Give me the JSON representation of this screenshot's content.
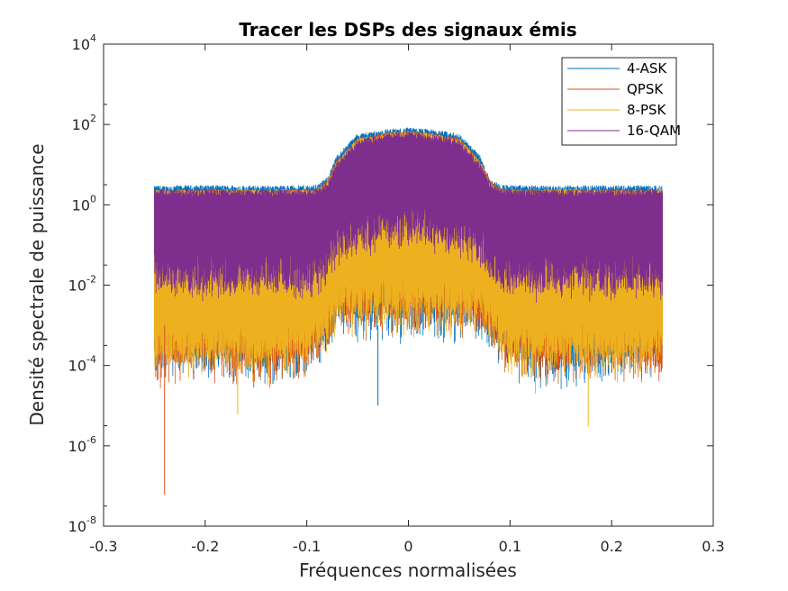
{
  "chart_data": {
    "type": "line",
    "title": "Tracer les DSPs des signaux émis",
    "xlabel": "Fréquences normalisées",
    "ylabel": "Densité spectrale de puissance",
    "xlim": [
      -0.3,
      0.3
    ],
    "ylim": [
      1e-08,
      10000.0
    ],
    "yscale": "log",
    "grid": false,
    "legend_position": "top-right",
    "x_ticks": [
      "-0.3",
      "-0.2",
      "-0.1",
      "0",
      "0.1",
      "0.2",
      "0.3"
    ],
    "y_ticks": [
      {
        "base": "10",
        "exp": "-8"
      },
      {
        "base": "10",
        "exp": "-6"
      },
      {
        "base": "10",
        "exp": "-4"
      },
      {
        "base": "10",
        "exp": "-2"
      },
      {
        "base": "10",
        "exp": "0"
      },
      {
        "base": "10",
        "exp": "2"
      },
      {
        "base": "10",
        "exp": "4"
      }
    ],
    "series": [
      {
        "name": "4-ASK",
        "color": "#0072BD",
        "x": [
          -0.25,
          -0.2,
          -0.15,
          -0.1,
          -0.09,
          -0.08,
          -0.07,
          -0.05,
          -0.02,
          0.0,
          0.02,
          0.05,
          0.07,
          0.08,
          0.09,
          0.1,
          0.15,
          0.2,
          0.25
        ],
        "upper": [
          2.5,
          2.6,
          2.5,
          2.6,
          2.7,
          4,
          15,
          50,
          65,
          70,
          65,
          50,
          15,
          4,
          2.7,
          2.6,
          2.5,
          2.6,
          2.5
        ],
        "lower": [
          0.0001,
          8e-05,
          5e-05,
          0.0001,
          0.0002,
          0.0003,
          0.001,
          0.0008,
          0.001,
          0.0008,
          0.001,
          0.0008,
          0.001,
          0.0003,
          0.0002,
          0.0001,
          5e-05,
          8e-05,
          0.0001
        ]
      },
      {
        "name": "QPSK",
        "color": "#D95319",
        "x": [
          -0.25,
          -0.2,
          -0.15,
          -0.1,
          -0.09,
          -0.08,
          -0.07,
          -0.05,
          -0.02,
          0.0,
          0.02,
          0.05,
          0.07,
          0.08,
          0.09,
          0.1,
          0.15,
          0.2,
          0.25
        ],
        "upper": [
          2.0,
          2.1,
          2.0,
          2.1,
          2.2,
          3.5,
          12,
          40,
          55,
          60,
          55,
          40,
          12,
          3.5,
          2.2,
          2.1,
          2.0,
          2.1,
          2.0
        ],
        "lower": [
          5e-05,
          0.0001,
          6e-05,
          0.0001,
          0.0002,
          0.0004,
          0.001,
          0.0009,
          0.0012,
          0.001,
          0.0012,
          0.0009,
          0.001,
          0.0004,
          0.0002,
          0.0001,
          6e-05,
          0.0001,
          5e-05
        ]
      },
      {
        "name": "8-PSK",
        "color": "#EDB120",
        "x": [
          -0.25,
          -0.2,
          -0.15,
          -0.1,
          -0.09,
          -0.08,
          -0.07,
          -0.05,
          -0.02,
          0.0,
          0.02,
          0.05,
          0.07,
          0.08,
          0.09,
          0.1,
          0.15,
          0.2,
          0.25
        ],
        "upper": [
          2.0,
          2.0,
          2.1,
          2.0,
          2.1,
          3.2,
          11,
          38,
          52,
          58,
          52,
          38,
          11,
          3.2,
          2.1,
          2.0,
          2.1,
          2.0,
          2.0
        ],
        "lower": [
          0.0001,
          0.0001,
          8e-05,
          0.0001,
          0.0003,
          0.0005,
          0.0015,
          0.001,
          0.0015,
          0.0012,
          0.0015,
          0.001,
          0.0015,
          0.0005,
          0.0003,
          0.0001,
          8e-05,
          0.0001,
          0.0001
        ]
      },
      {
        "name": "16-QAM",
        "color": "#7E2F8E",
        "x": [
          -0.25,
          -0.2,
          -0.15,
          -0.1,
          -0.09,
          -0.08,
          -0.07,
          -0.05,
          -0.02,
          0.0,
          0.02,
          0.05,
          0.07,
          0.08,
          0.09,
          0.1,
          0.15,
          0.2,
          0.25
        ],
        "upper": [
          2.0,
          2.0,
          2.0,
          2.0,
          2.1,
          3.0,
          10,
          35,
          50,
          55,
          50,
          35,
          10,
          3.0,
          2.1,
          2.0,
          2.0,
          2.0,
          2.0
        ],
        "lower": [
          0.01,
          0.01,
          0.01,
          0.01,
          0.012,
          0.02,
          0.06,
          0.1,
          0.15,
          0.2,
          0.15,
          0.1,
          0.06,
          0.02,
          0.012,
          0.01,
          0.01,
          0.01,
          0.01
        ]
      }
    ],
    "outlier_minima": [
      {
        "x": -0.24,
        "y": 6e-08,
        "series": "QPSK"
      },
      {
        "x": -0.168,
        "y": 6e-06,
        "series": "8-PSK"
      },
      {
        "x": 0.177,
        "y": 3e-06,
        "series": "8-PSK"
      },
      {
        "x": 0.125,
        "y": 2e-05,
        "series": "8-PSK"
      },
      {
        "x": -0.03,
        "y": 1e-05,
        "series": "4-ASK"
      }
    ]
  }
}
